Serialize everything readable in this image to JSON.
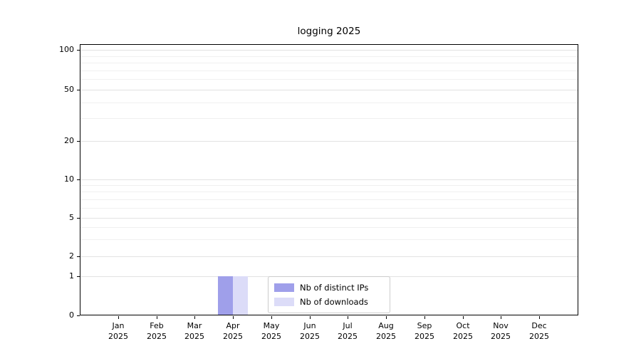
{
  "chart_data": {
    "type": "bar",
    "title": "logging 2025",
    "x": {
      "months": [
        "Jan",
        "Feb",
        "Mar",
        "Apr",
        "May",
        "Jun",
        "Jul",
        "Aug",
        "Sep",
        "Oct",
        "Nov",
        "Dec"
      ],
      "year": "2025"
    },
    "y": {
      "scale": "log-like",
      "range": [
        0,
        100
      ],
      "ticks": [
        0,
        1,
        2,
        5,
        10,
        20,
        50,
        100
      ],
      "minor_ticks": [
        3,
        4,
        6,
        7,
        8,
        9,
        30,
        40,
        60,
        70,
        80,
        90
      ]
    },
    "series": [
      {
        "name": "Nb of distinct IPs",
        "slug": "distinct-ips",
        "color": "#9f9fea",
        "values": [
          0,
          0,
          0,
          1,
          0,
          0,
          0,
          0,
          0,
          0,
          0,
          0
        ]
      },
      {
        "name": "Nb of downloads",
        "slug": "downloads",
        "color": "#dcdcf8",
        "values": [
          0,
          0,
          0,
          1,
          0,
          0,
          0,
          0,
          0,
          0,
          0,
          0
        ]
      }
    ],
    "legend": {
      "position": "lower center"
    },
    "grid": true
  }
}
